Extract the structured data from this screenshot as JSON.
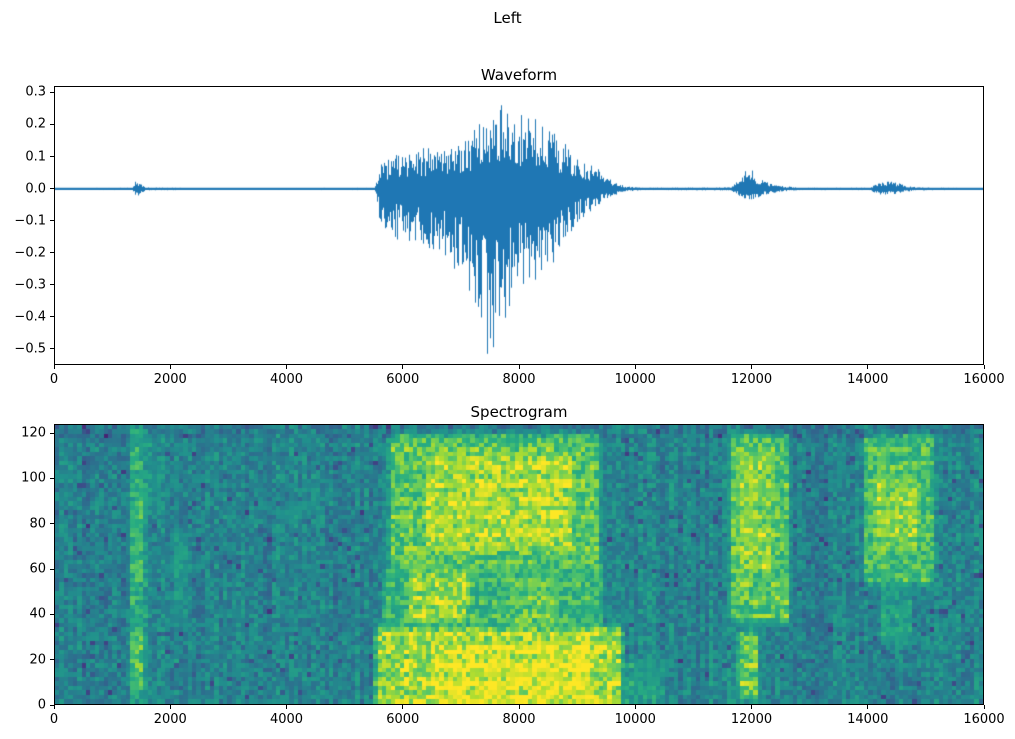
{
  "figure": {
    "title": "Left",
    "background_color": "#ffffff",
    "text_color": "#000000"
  },
  "chart_data": [
    {
      "type": "line",
      "title": "Waveform",
      "line_color": "#1f77b4",
      "x_range": [
        0,
        16000
      ],
      "y_range": [
        -0.55,
        0.32
      ],
      "xticks": [
        0,
        2000,
        4000,
        6000,
        8000,
        10000,
        12000,
        14000,
        16000
      ],
      "xtick_labels": [
        "0",
        "2000",
        "4000",
        "6000",
        "8000",
        "10000",
        "12000",
        "14000",
        "16000"
      ],
      "yticks": [
        0.3,
        0.2,
        0.1,
        0.0,
        -0.1,
        -0.2,
        -0.3,
        -0.4,
        -0.5
      ],
      "ytick_labels": [
        "0.3",
        "0.2",
        "0.1",
        "0.0",
        "−0.1",
        "−0.2",
        "−0.3",
        "−0.4",
        "−0.5"
      ],
      "encoding": "envelope entries are [sample_index, peak_positive_amplitude, peak_negative_amplitude]",
      "envelope": [
        [
          0,
          0.004,
          -0.004
        ],
        [
          1330,
          0.005,
          -0.005
        ],
        [
          1400,
          0.038,
          -0.035
        ],
        [
          1480,
          0.02,
          -0.018
        ],
        [
          1560,
          0.006,
          -0.006
        ],
        [
          2500,
          0.004,
          -0.004
        ],
        [
          5500,
          0.005,
          -0.005
        ],
        [
          5620,
          0.09,
          -0.13
        ],
        [
          5900,
          0.11,
          -0.16
        ],
        [
          6300,
          0.13,
          -0.17
        ],
        [
          6700,
          0.14,
          -0.22
        ],
        [
          7050,
          0.16,
          -0.28
        ],
        [
          7250,
          0.19,
          -0.42
        ],
        [
          7450,
          0.24,
          -0.52
        ],
        [
          7650,
          0.27,
          -0.48
        ],
        [
          7900,
          0.24,
          -0.33
        ],
        [
          8200,
          0.23,
          -0.3
        ],
        [
          8500,
          0.2,
          -0.26
        ],
        [
          8800,
          0.14,
          -0.18
        ],
        [
          9050,
          0.09,
          -0.1
        ],
        [
          9300,
          0.07,
          -0.06
        ],
        [
          9550,
          0.04,
          -0.035
        ],
        [
          9800,
          0.012,
          -0.012
        ],
        [
          10100,
          0.005,
          -0.005
        ],
        [
          11650,
          0.006,
          -0.006
        ],
        [
          11800,
          0.04,
          -0.03
        ],
        [
          11950,
          0.075,
          -0.055
        ],
        [
          12100,
          0.045,
          -0.035
        ],
        [
          12300,
          0.025,
          -0.02
        ],
        [
          12550,
          0.012,
          -0.01
        ],
        [
          12800,
          0.005,
          -0.005
        ],
        [
          14050,
          0.005,
          -0.005
        ],
        [
          14200,
          0.03,
          -0.025
        ],
        [
          14450,
          0.028,
          -0.022
        ],
        [
          14650,
          0.015,
          -0.012
        ],
        [
          14850,
          0.006,
          -0.006
        ],
        [
          16000,
          0.004,
          -0.004
        ]
      ]
    },
    {
      "type": "heatmap",
      "title": "Spectrogram",
      "colormap": "viridis",
      "x_range": [
        0,
        16000
      ],
      "y_range": [
        0,
        124
      ],
      "xticks": [
        0,
        2000,
        4000,
        6000,
        8000,
        10000,
        12000,
        14000,
        16000
      ],
      "xtick_labels": [
        "0",
        "2000",
        "4000",
        "6000",
        "8000",
        "10000",
        "12000",
        "14000",
        "16000"
      ],
      "yticks": [
        0,
        20,
        40,
        60,
        80,
        100,
        120
      ],
      "ytick_labels": [
        "0",
        "20",
        "40",
        "60",
        "80",
        "100",
        "120"
      ],
      "background_level": 0.45,
      "encoding": "regions are high-energy areas: x = sample range, f = frequency-bin range, v = relative intensity 0..1",
      "regions": [
        {
          "x": [
            1320,
            1540
          ],
          "f": [
            2,
            122
          ],
          "v": 0.66
        },
        {
          "x": [
            1340,
            1500
          ],
          "f": [
            8,
            32
          ],
          "v": 0.78
        },
        {
          "x": [
            1360,
            1500
          ],
          "f": [
            55,
            90
          ],
          "v": 0.72
        },
        {
          "x": [
            1520,
            1680
          ],
          "f": [
            88,
            115
          ],
          "v": 0.58
        },
        {
          "x": [
            2050,
            2250
          ],
          "f": [
            40,
            75
          ],
          "v": 0.56
        },
        {
          "x": [
            5570,
            9730
          ],
          "f": [
            0,
            32
          ],
          "v": 0.93
        },
        {
          "x": [
            6500,
            9200
          ],
          "f": [
            2,
            26
          ],
          "v": 1.0
        },
        {
          "x": [
            5700,
            9400
          ],
          "f": [
            32,
            60
          ],
          "v": 0.72
        },
        {
          "x": [
            6100,
            7100
          ],
          "f": [
            38,
            58
          ],
          "v": 0.92
        },
        {
          "x": [
            7900,
            8600
          ],
          "f": [
            35,
            55
          ],
          "v": 0.8
        },
        {
          "x": [
            5800,
            9350
          ],
          "f": [
            62,
            118
          ],
          "v": 0.8
        },
        {
          "x": [
            6400,
            8900
          ],
          "f": [
            70,
            110
          ],
          "v": 0.93
        },
        {
          "x": [
            9730,
            10500
          ],
          "f": [
            0,
            18
          ],
          "v": 0.6
        },
        {
          "x": [
            11680,
            12620
          ],
          "f": [
            38,
            118
          ],
          "v": 0.8
        },
        {
          "x": [
            11800,
            12350
          ],
          "f": [
            60,
            110
          ],
          "v": 0.88
        },
        {
          "x": [
            11820,
            12080
          ],
          "f": [
            4,
            30
          ],
          "v": 0.84
        },
        {
          "x": [
            13980,
            15120
          ],
          "f": [
            55,
            118
          ],
          "v": 0.76
        },
        {
          "x": [
            14150,
            14850
          ],
          "f": [
            70,
            100
          ],
          "v": 0.88
        },
        {
          "x": [
            14250,
            14750
          ],
          "f": [
            28,
            55
          ],
          "v": 0.6
        }
      ]
    }
  ]
}
